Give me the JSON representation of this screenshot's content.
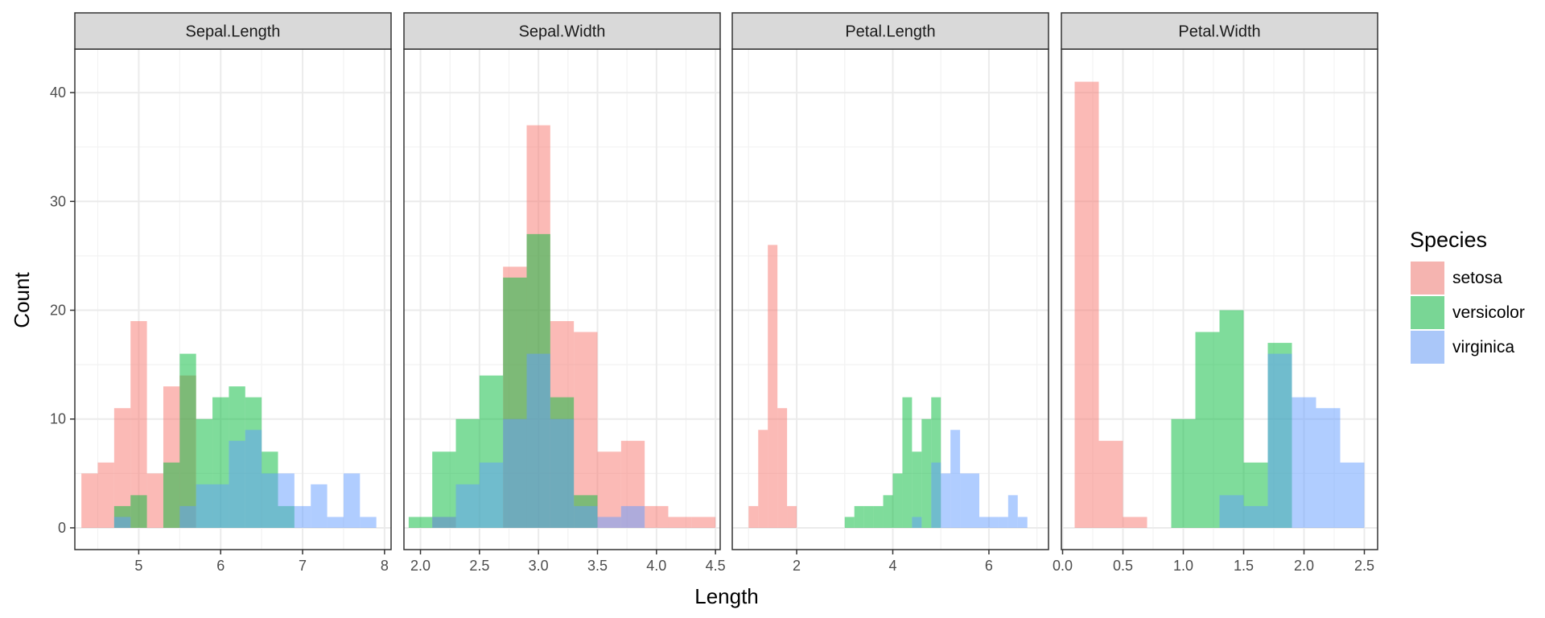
{
  "chart_data": {
    "type": "bar",
    "subtype": "faceted-histogram",
    "xlabel": "Length",
    "ylabel": "Count",
    "ylim": [
      -2,
      44
    ],
    "yticks": [
      0,
      10,
      20,
      30,
      40
    ],
    "grid": true,
    "legend": {
      "title": "Species",
      "placement": "right",
      "entries": [
        "setosa",
        "versicolor",
        "virginica"
      ]
    },
    "colors": {
      "setosa": "#F8766D",
      "versicolor": "#00BA38",
      "virginica": "#619CFF"
    },
    "bar_opacity": 0.5,
    "facets": [
      {
        "title": "Sepal.Length",
        "xlim": [
          4.22,
          8.08
        ],
        "xticks": [
          {
            "v": 5,
            "l": "5"
          },
          {
            "v": 6,
            "l": "6"
          },
          {
            "v": 7,
            "l": "7"
          },
          {
            "v": 8,
            "l": "8"
          }
        ],
        "bins": [
          4.3,
          4.5,
          4.7,
          4.9,
          5.1,
          5.3,
          5.5,
          5.7,
          5.9,
          6.1,
          6.3,
          6.5,
          6.7,
          6.9,
          7.1,
          7.3,
          7.5,
          7.7,
          7.9
        ],
        "series": [
          {
            "name": "setosa",
            "values": [
              5,
              6,
              11,
              19,
              5,
              13,
              14,
              0,
              0,
              0,
              0,
              0,
              0,
              0,
              0,
              0,
              0,
              0
            ]
          },
          {
            "name": "versicolor",
            "values": [
              0,
              0,
              2,
              3,
              0,
              6,
              16,
              10,
              12,
              13,
              12,
              7,
              2,
              0,
              0,
              0,
              0,
              0
            ]
          },
          {
            "name": "virginica",
            "values": [
              0,
              0,
              1,
              0,
              0,
              0,
              2,
              4,
              4,
              8,
              9,
              5,
              5,
              2,
              4,
              1,
              5,
              1
            ]
          }
        ]
      },
      {
        "title": "Sepal.Width",
        "xlim": [
          1.86,
          4.54
        ],
        "xticks": [
          {
            "v": 2.0,
            "l": "2.0"
          },
          {
            "v": 2.5,
            "l": "2.5"
          },
          {
            "v": 3.0,
            "l": "3.0"
          },
          {
            "v": 3.5,
            "l": "3.5"
          },
          {
            "v": 4.0,
            "l": "4.0"
          },
          {
            "v": 4.5,
            "l": "4.5"
          }
        ],
        "bins": [
          1.9,
          2.1,
          2.3,
          2.5,
          2.7,
          2.9,
          3.1,
          3.3,
          3.5,
          3.7,
          3.9,
          4.1,
          4.3,
          4.5
        ],
        "series": [
          {
            "name": "setosa",
            "values": [
              0,
              1,
              0,
              0,
              24,
              37,
              19,
              18,
              7,
              8,
              2,
              1,
              1
            ]
          },
          {
            "name": "versicolor",
            "values": [
              1,
              7,
              10,
              14,
              23,
              27,
              12,
              3,
              0,
              0,
              0,
              0,
              0
            ]
          },
          {
            "name": "virginica",
            "values": [
              0,
              1,
              4,
              6,
              10,
              16,
              10,
              2,
              1,
              2,
              0,
              0,
              0
            ]
          }
        ]
      },
      {
        "title": "Petal.Length",
        "xlim": [
          0.66,
          7.24
        ],
        "xticks": [
          {
            "v": 2,
            "l": "2"
          },
          {
            "v": 4,
            "l": "4"
          },
          {
            "v": 6,
            "l": "6"
          }
        ],
        "bins": [
          1.0,
          1.2,
          1.4,
          1.6,
          1.8,
          2.0,
          2.2,
          2.4,
          2.6,
          2.8,
          3.0,
          3.2,
          3.4,
          3.6,
          3.8,
          4.0,
          4.2,
          4.4,
          4.6,
          4.8,
          5.0,
          5.2,
          5.4,
          5.6,
          5.8,
          6.0,
          6.2,
          6.4,
          6.6,
          6.8,
          7.0
        ],
        "series": [
          {
            "name": "setosa",
            "values": [
              2,
              9,
              26,
              11,
              2,
              0,
              0,
              0,
              0,
              0,
              0,
              0,
              0,
              0,
              0,
              0,
              0,
              0,
              0,
              0,
              0,
              0,
              0,
              0,
              0,
              0,
              0,
              0,
              0,
              0
            ]
          },
          {
            "name": "versicolor",
            "values": [
              0,
              0,
              0,
              0,
              0,
              0,
              0,
              0,
              0,
              0,
              1,
              2,
              2,
              2,
              3,
              5,
              12,
              7,
              10,
              12,
              0,
              0,
              0,
              0,
              0,
              0,
              0,
              0,
              0,
              0
            ]
          },
          {
            "name": "virginica",
            "values": [
              0,
              0,
              0,
              0,
              0,
              0,
              0,
              0,
              0,
              0,
              0,
              0,
              0,
              0,
              0,
              0,
              0,
              1,
              0,
              6,
              5,
              9,
              5,
              5,
              1,
              1,
              1,
              3,
              1,
              0
            ]
          }
        ]
      },
      {
        "title": "Petal.Width",
        "xlim": [
          -0.01,
          2.61
        ],
        "xticks": [
          {
            "v": 0.0,
            "l": "0.0"
          },
          {
            "v": 0.5,
            "l": "0.5"
          },
          {
            "v": 1.0,
            "l": "1.0"
          },
          {
            "v": 1.5,
            "l": "1.5"
          },
          {
            "v": 2.0,
            "l": "2.0"
          },
          {
            "v": 2.5,
            "l": "2.5"
          }
        ],
        "bins": [
          0.1,
          0.3,
          0.5,
          0.7,
          0.9,
          1.1,
          1.3,
          1.5,
          1.7,
          1.9,
          2.1,
          2.3,
          2.5
        ],
        "series": [
          {
            "name": "setosa",
            "values": [
              41,
              8,
              1,
              0,
              0,
              0,
              0,
              0,
              0,
              0,
              0,
              0
            ]
          },
          {
            "name": "versicolor",
            "values": [
              0,
              0,
              0,
              0,
              10,
              18,
              20,
              6,
              17,
              0,
              0,
              0
            ]
          },
          {
            "name": "virginica",
            "values": [
              0,
              0,
              0,
              0,
              0,
              0,
              3,
              2,
              16,
              12,
              11,
              6
            ]
          }
        ]
      }
    ]
  }
}
